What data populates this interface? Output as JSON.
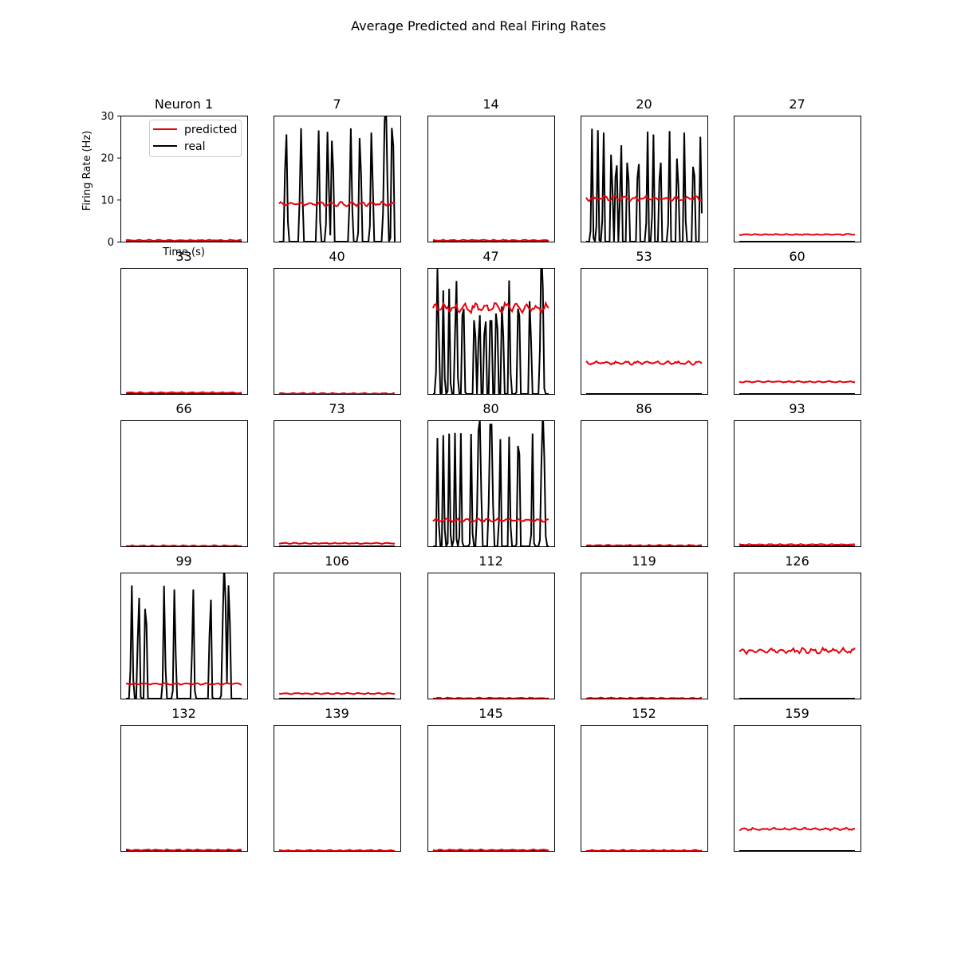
{
  "figure_title": "Average Predicted and Real Firing Rates",
  "colors": {
    "predicted": "#e8000b",
    "real": "#000000"
  },
  "chart_data": {
    "type": "line",
    "layout": "small-multiples 5x5",
    "xlabel": "Time (s)",
    "ylabel": "Firing Rate (Hz)",
    "ylim": [
      0,
      30
    ],
    "yticks": [
      0,
      10,
      20,
      30
    ],
    "legend": {
      "placement": "top-right",
      "entries": [
        "predicted",
        "real"
      ]
    },
    "panels": [
      {
        "title": "Neuron 1",
        "predicted_mean": 0.3,
        "real_profile": "zero",
        "real_peak": 0
      },
      {
        "title": "7",
        "predicted_mean": 9.0,
        "real_profile": "oscA",
        "real_peak": 27
      },
      {
        "title": "14",
        "predicted_mean": 0.3,
        "real_profile": "zero",
        "real_peak": 0
      },
      {
        "title": "20",
        "predicted_mean": 10.3,
        "real_profile": "oscDense",
        "real_peak": 27
      },
      {
        "title": "27",
        "predicted_mean": 1.7,
        "real_profile": "zero",
        "real_peak": 0
      },
      {
        "title": "33",
        "predicted_mean": 0.3,
        "real_profile": "zero",
        "real_peak": 0
      },
      {
        "title": "40",
        "predicted_mean": 0.1,
        "real_profile": "zero",
        "real_peak": 0
      },
      {
        "title": "47",
        "predicted_mean": 20.5,
        "real_profile": "oscB",
        "real_peak": 28
      },
      {
        "title": "53",
        "predicted_mean": 7.4,
        "real_profile": "zero",
        "real_peak": 0
      },
      {
        "title": "60",
        "predicted_mean": 2.9,
        "real_profile": "zero",
        "real_peak": 0
      },
      {
        "title": "66",
        "predicted_mean": 0.1,
        "real_profile": "zero",
        "real_peak": 0
      },
      {
        "title": "73",
        "predicted_mean": 0.7,
        "real_profile": "zero",
        "real_peak": 0
      },
      {
        "title": "80",
        "predicted_mean": 6.2,
        "real_profile": "oscC",
        "real_peak": 27
      },
      {
        "title": "86",
        "predicted_mean": 0.2,
        "real_profile": "zero",
        "real_peak": 0
      },
      {
        "title": "93",
        "predicted_mean": 0.4,
        "real_profile": "zero",
        "real_peak": 0
      },
      {
        "title": "99",
        "predicted_mean": 3.5,
        "real_profile": "oscD",
        "real_peak": 27
      },
      {
        "title": "106",
        "predicted_mean": 1.2,
        "real_profile": "zero",
        "real_peak": 0
      },
      {
        "title": "112",
        "predicted_mean": 0.1,
        "real_profile": "zero",
        "real_peak": 0
      },
      {
        "title": "119",
        "predicted_mean": 0.1,
        "real_profile": "zero",
        "real_peak": 0
      },
      {
        "title": "126",
        "predicted_mean": 11.4,
        "real_profile": "zero",
        "real_peak": 0
      },
      {
        "title": "132",
        "predicted_mean": 0.2,
        "real_profile": "zero",
        "real_peak": 0
      },
      {
        "title": "139",
        "predicted_mean": 0.1,
        "real_profile": "zero",
        "real_peak": 0
      },
      {
        "title": "145",
        "predicted_mean": 0.2,
        "real_profile": "zero",
        "real_peak": 0
      },
      {
        "title": "152",
        "predicted_mean": 0.1,
        "real_profile": "zero",
        "real_peak": 0
      },
      {
        "title": "159",
        "predicted_mean": 5.2,
        "real_profile": "zero",
        "real_peak": 0
      }
    ]
  }
}
